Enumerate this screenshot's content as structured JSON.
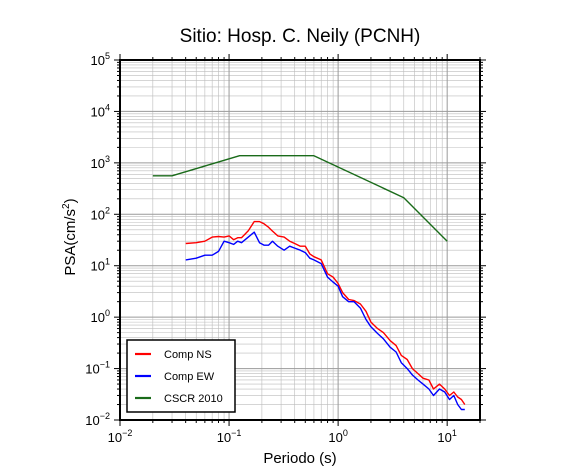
{
  "chart_data": {
    "type": "line",
    "title": "Sitio: Hosp. C. Neily (PCNH)",
    "xlabel": "Periodo (s)",
    "ylabel": {
      "prefix": "PSA(cm/s",
      "sup": "2",
      "suffix": ")"
    },
    "xscale": "log",
    "yscale": "log",
    "xlim": [
      0.01,
      20
    ],
    "ylim": [
      0.01,
      100000
    ],
    "grid": true,
    "legend_position": "bottom-left",
    "x_tick_labels": [
      {
        "base": "10",
        "exp": "−2",
        "value": 0.01
      },
      {
        "base": "10",
        "exp": "−1",
        "value": 0.1
      },
      {
        "base": "10",
        "exp": "0",
        "value": 1
      },
      {
        "base": "10",
        "exp": "1",
        "value": 10
      }
    ],
    "y_tick_labels": [
      {
        "base": "10",
        "exp": "−2",
        "value": 0.01
      },
      {
        "base": "10",
        "exp": "−1",
        "value": 0.1
      },
      {
        "base": "10",
        "exp": "0",
        "value": 1
      },
      {
        "base": "10",
        "exp": "1",
        "value": 10
      },
      {
        "base": "10",
        "exp": "2",
        "value": 100
      },
      {
        "base": "10",
        "exp": "3",
        "value": 1000
      },
      {
        "base": "10",
        "exp": "4",
        "value": 10000
      },
      {
        "base": "10",
        "exp": "5",
        "value": 100000
      }
    ],
    "series": [
      {
        "name": "Comp NS",
        "color": "#ff0000",
        "x": [
          0.04,
          0.05,
          0.06,
          0.07,
          0.08,
          0.09,
          0.1,
          0.11,
          0.12,
          0.13,
          0.15,
          0.17,
          0.19,
          0.21,
          0.23,
          0.25,
          0.28,
          0.32,
          0.36,
          0.4,
          0.45,
          0.5,
          0.55,
          0.6,
          0.7,
          0.8,
          0.9,
          1.0,
          1.1,
          1.25,
          1.4,
          1.6,
          1.8,
          2.0,
          2.3,
          2.6,
          3.0,
          3.4,
          3.8,
          4.3,
          4.8,
          5.4,
          6.0,
          6.8,
          7.5,
          8.5,
          9.5,
          10.5,
          11.5,
          12.5,
          13.5,
          14.5
        ],
        "y": [
          27,
          28,
          30,
          36,
          37,
          36,
          38,
          32,
          35,
          35,
          48,
          72,
          72,
          65,
          56,
          47,
          38,
          36,
          30,
          27,
          24,
          24,
          17,
          15,
          13,
          7,
          6,
          4.5,
          3,
          2.2,
          2.1,
          1.8,
          1.3,
          0.8,
          0.6,
          0.5,
          0.35,
          0.28,
          0.18,
          0.15,
          0.1,
          0.08,
          0.065,
          0.06,
          0.04,
          0.05,
          0.04,
          0.03,
          0.035,
          0.028,
          0.025,
          0.02
        ]
      },
      {
        "name": "Comp EW",
        "color": "#0000ff",
        "x": [
          0.04,
          0.05,
          0.06,
          0.07,
          0.08,
          0.09,
          0.1,
          0.11,
          0.12,
          0.13,
          0.15,
          0.17,
          0.19,
          0.21,
          0.23,
          0.25,
          0.28,
          0.32,
          0.36,
          0.4,
          0.45,
          0.5,
          0.55,
          0.6,
          0.7,
          0.8,
          0.9,
          1.0,
          1.1,
          1.25,
          1.4,
          1.6,
          1.8,
          2.0,
          2.3,
          2.6,
          3.0,
          3.4,
          3.8,
          4.3,
          4.8,
          5.4,
          6.0,
          6.8,
          7.5,
          8.5,
          9.5,
          10.5,
          11.5,
          12.5,
          13.5,
          14.5
        ],
        "y": [
          13,
          14,
          16,
          16,
          19,
          30,
          28,
          26,
          30,
          28,
          36,
          45,
          28,
          25,
          25,
          30,
          24,
          20,
          24,
          22,
          20,
          18,
          14,
          13,
          11,
          6,
          4.8,
          4,
          2.5,
          2,
          2,
          1.5,
          0.9,
          0.65,
          0.48,
          0.38,
          0.26,
          0.21,
          0.13,
          0.1,
          0.075,
          0.06,
          0.05,
          0.04,
          0.03,
          0.04,
          0.035,
          0.025,
          0.03,
          0.02,
          0.016,
          0.016
        ]
      },
      {
        "name": "CSCR 2010",
        "color": "#1a6b1a",
        "x": [
          0.02,
          0.03,
          0.125,
          0.6,
          4.0,
          10.0
        ],
        "y": [
          560,
          560,
          1380,
          1380,
          210,
          30
        ]
      }
    ]
  }
}
